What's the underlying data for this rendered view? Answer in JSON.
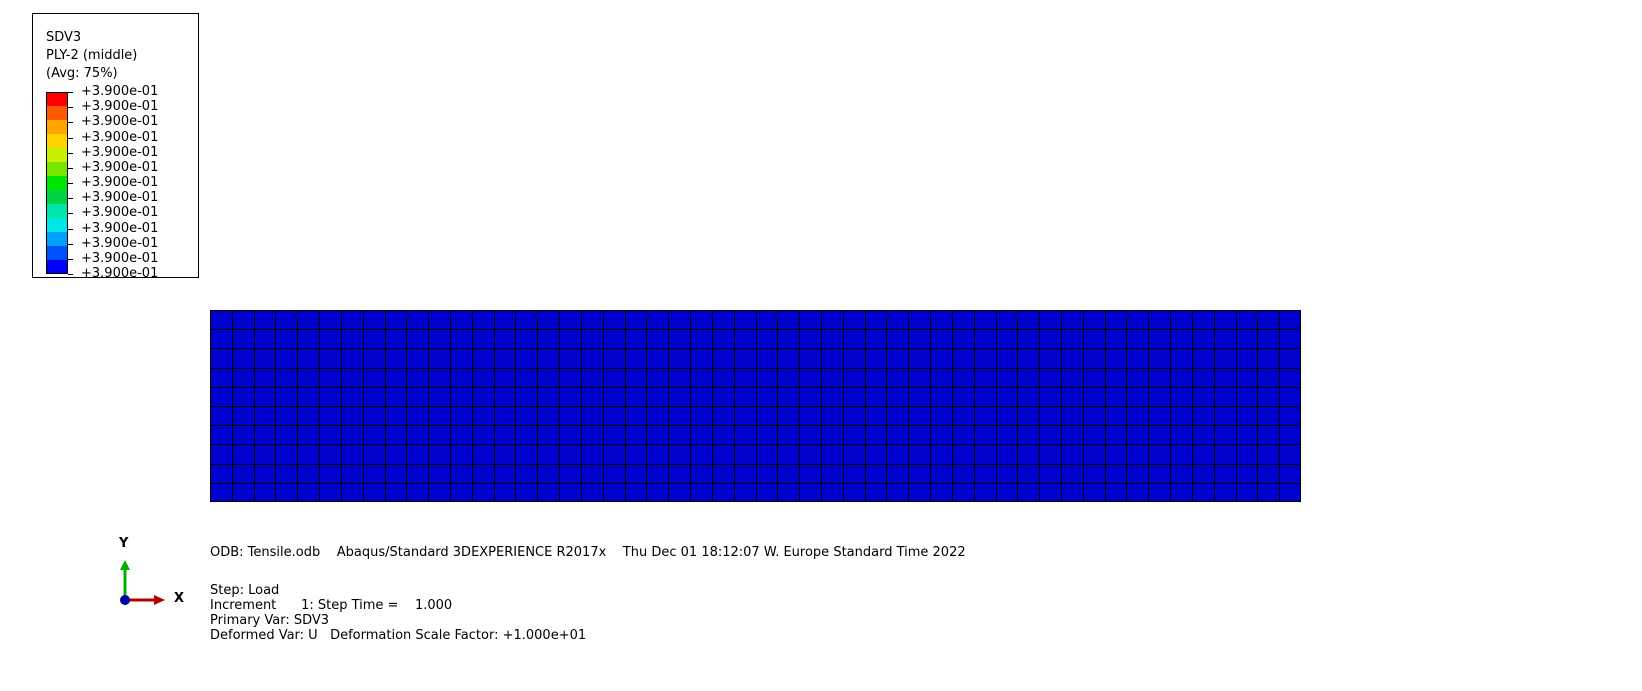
{
  "legend": {
    "variable": "SDV3",
    "section": "PLY-2 (middle)",
    "averaging": "(Avg: 75%)",
    "colors": [
      "#ff0000",
      "#ff5a00",
      "#ffa500",
      "#ffd200",
      "#c8f000",
      "#78e600",
      "#00e600",
      "#00d246",
      "#00e6aa",
      "#00e6e6",
      "#00a0ff",
      "#0050ff",
      "#0000f5"
    ],
    "tick_labels": [
      "+3.900e-01",
      "+3.900e-01",
      "+3.900e-01",
      "+3.900e-01",
      "+3.900e-01",
      "+3.900e-01",
      "+3.900e-01",
      "+3.900e-01",
      "+3.900e-01",
      "+3.900e-01",
      "+3.900e-01",
      "+3.900e-01",
      "+3.900e-01"
    ]
  },
  "mesh": {
    "fill_color": "#0000cd",
    "edge_color": "#000000",
    "columns": 50,
    "rows": 10
  },
  "info": {
    "odb_line": "ODB: Tensile.odb    Abaqus/Standard 3DEXPERIENCE R2017x    Thu Dec 01 18:12:07 W. Europe Standard Time 2022",
    "step_line": "Step: Load",
    "increment_line": "Increment      1: Step Time =    1.000",
    "primary_var_line": "Primary Var: SDV3",
    "deformed_var_line": "Deformed Var: U   Deformation Scale Factor: +1.000e+01"
  },
  "triad": {
    "y_label": "Y",
    "x_label": "X",
    "y_axis_color": "#00b000",
    "x_axis_color": "#b00000",
    "origin_color": "#0000a0"
  }
}
